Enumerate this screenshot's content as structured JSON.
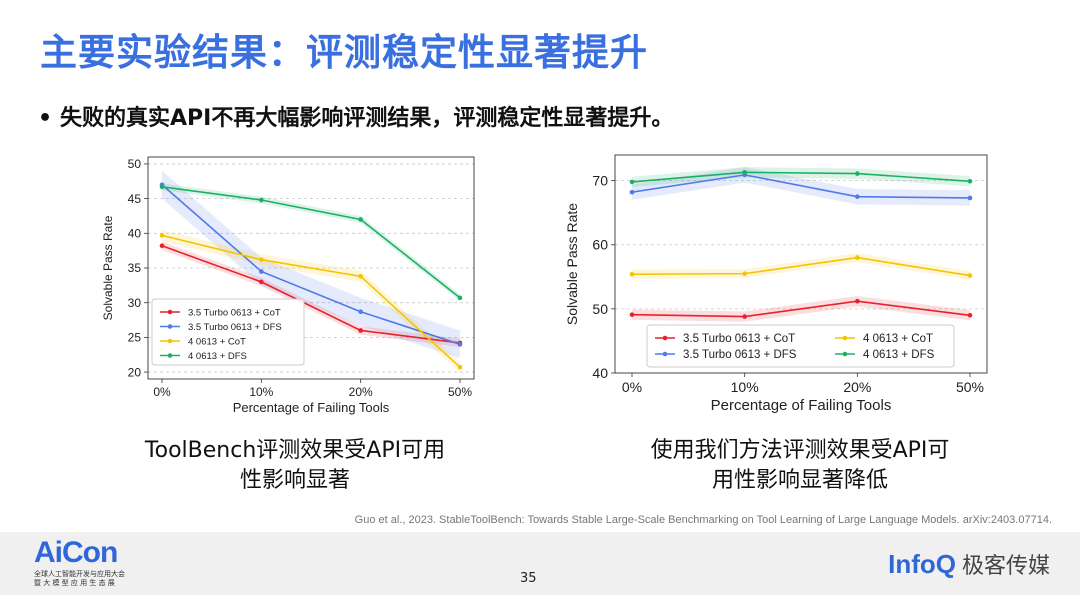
{
  "title": "主要实验结果：评测稳定性显著提升",
  "bullet": "失败的真实API不再大幅影响评测结果，评测稳定性显著提升。",
  "captions": {
    "left": [
      "ToolBench评测效果受API可用",
      "性影响显著"
    ],
    "right": [
      "使用我们方法评测效果受API可",
      "用性影响显著降低"
    ]
  },
  "citation": "Guo et al., 2023. StableToolBench: Towards Stable Large-Scale Benchmarking on Tool Learning of Large Language Models. arXiv:2403.07714.",
  "footer": {
    "logo": "AiCon",
    "logo_sub1": "全球人工智能开发与应用大会",
    "logo_sub2": "暨 大 模 型 应 用 生 态 展",
    "page_number": "35",
    "brand_en": "InfoQ",
    "brand_cn": "极客传媒"
  },
  "chart_data": [
    {
      "type": "line",
      "categories": [
        "0%",
        "10%",
        "20%",
        "50%"
      ],
      "xlabel": "Percentage of Failing Tools",
      "ylabel": "Solvable Pass Rate",
      "ylim": [
        19,
        51
      ],
      "yticks": [
        20,
        25,
        30,
        35,
        40,
        45,
        50
      ],
      "grid": true,
      "legend": "bottom-left",
      "series": [
        {
          "name": "3.5 Turbo 0613 + CoT",
          "color": "#e8222d",
          "values": [
            38.2,
            33.0,
            26.0,
            24.2
          ],
          "band": 0.6
        },
        {
          "name": "3.5 Turbo 0613 + DFS",
          "color": "#4f7be8",
          "values": [
            47.0,
            34.5,
            28.7,
            24.0
          ],
          "band": 2.0
        },
        {
          "name": "4 0613 + CoT",
          "color": "#f5c400",
          "values": [
            39.7,
            36.2,
            33.8,
            20.7
          ],
          "band": 0.8
        },
        {
          "name": "4 0613 + DFS",
          "color": "#1cb063",
          "values": [
            46.7,
            44.8,
            42.0,
            30.7
          ],
          "band": 0.5
        }
      ]
    },
    {
      "type": "line",
      "categories": [
        "0%",
        "10%",
        "20%",
        "50%"
      ],
      "xlabel": "Percentage of Failing Tools",
      "ylabel": "Solvable Pass Rate",
      "ylim": [
        40,
        74
      ],
      "yticks": [
        40,
        50,
        60,
        70
      ],
      "grid": true,
      "legend": "bottom",
      "series": [
        {
          "name": "3.5 Turbo 0613 + CoT",
          "color": "#e8222d",
          "values": [
            49.1,
            48.8,
            51.2,
            49.0
          ],
          "band": 0.8
        },
        {
          "name": "3.5 Turbo 0613 + DFS",
          "color": "#4f7be8",
          "values": [
            68.2,
            70.9,
            67.5,
            67.3
          ],
          "band": 1.2
        },
        {
          "name": "4 0613 + CoT",
          "color": "#f5c400",
          "values": [
            55.4,
            55.5,
            58.0,
            55.2
          ],
          "band": 0.7
        },
        {
          "name": "4 0613 + DFS",
          "color": "#1cb063",
          "values": [
            69.8,
            71.3,
            71.1,
            69.9
          ],
          "band": 0.8
        }
      ]
    }
  ]
}
